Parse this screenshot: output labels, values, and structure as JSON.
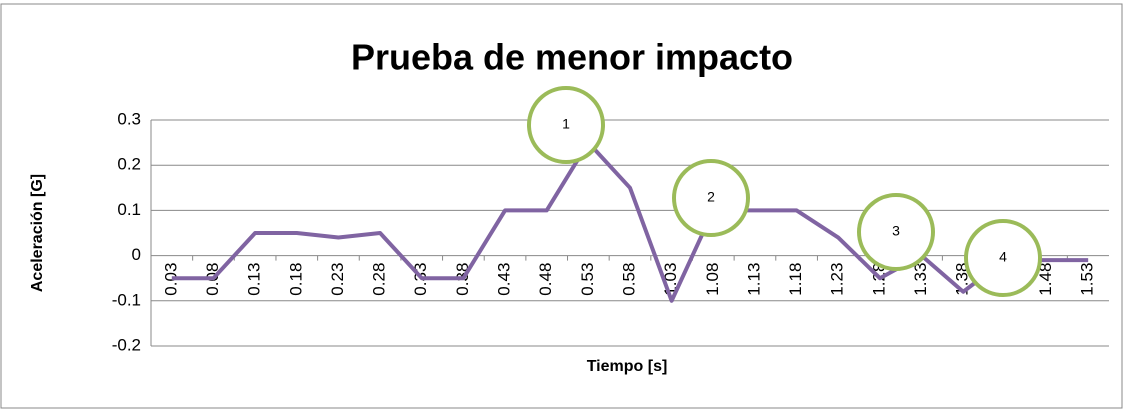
{
  "chart_data": {
    "type": "line",
    "title": "Prueba de menor impacto",
    "x_label": "Tiempo [s]",
    "y_label": "Aceleración [G]",
    "categories": [
      "0.03",
      "0.08",
      "0.13",
      "0.18",
      "0.23",
      "0.28",
      "0.33",
      "0.38",
      "0.43",
      "0.48",
      "0.53",
      "0.58",
      "1.03",
      "1.08",
      "1.13",
      "1.18",
      "1.23",
      "1.28",
      "1.33",
      "1.38",
      "1.43",
      "1.48",
      "1.53"
    ],
    "series": [
      {
        "name": "Aceleración",
        "color": "#8064a2",
        "values": [
          -0.05,
          -0.05,
          0.05,
          0.05,
          0.04,
          0.05,
          -0.05,
          -0.05,
          0.1,
          0.1,
          0.25,
          0.15,
          -0.1,
          0.1,
          0.1,
          0.1,
          0.04,
          -0.05,
          0.0,
          -0.08,
          -0.01,
          -0.01,
          -0.01
        ]
      }
    ],
    "ylim": [
      -0.2,
      0.3
    ],
    "yticks": [
      -0.2,
      -0.1,
      0,
      0.1,
      0.2,
      0.3
    ],
    "grid": true,
    "annotations": [
      "1",
      "2",
      "3",
      "4"
    ],
    "annotation_color": "#9bbb59"
  }
}
